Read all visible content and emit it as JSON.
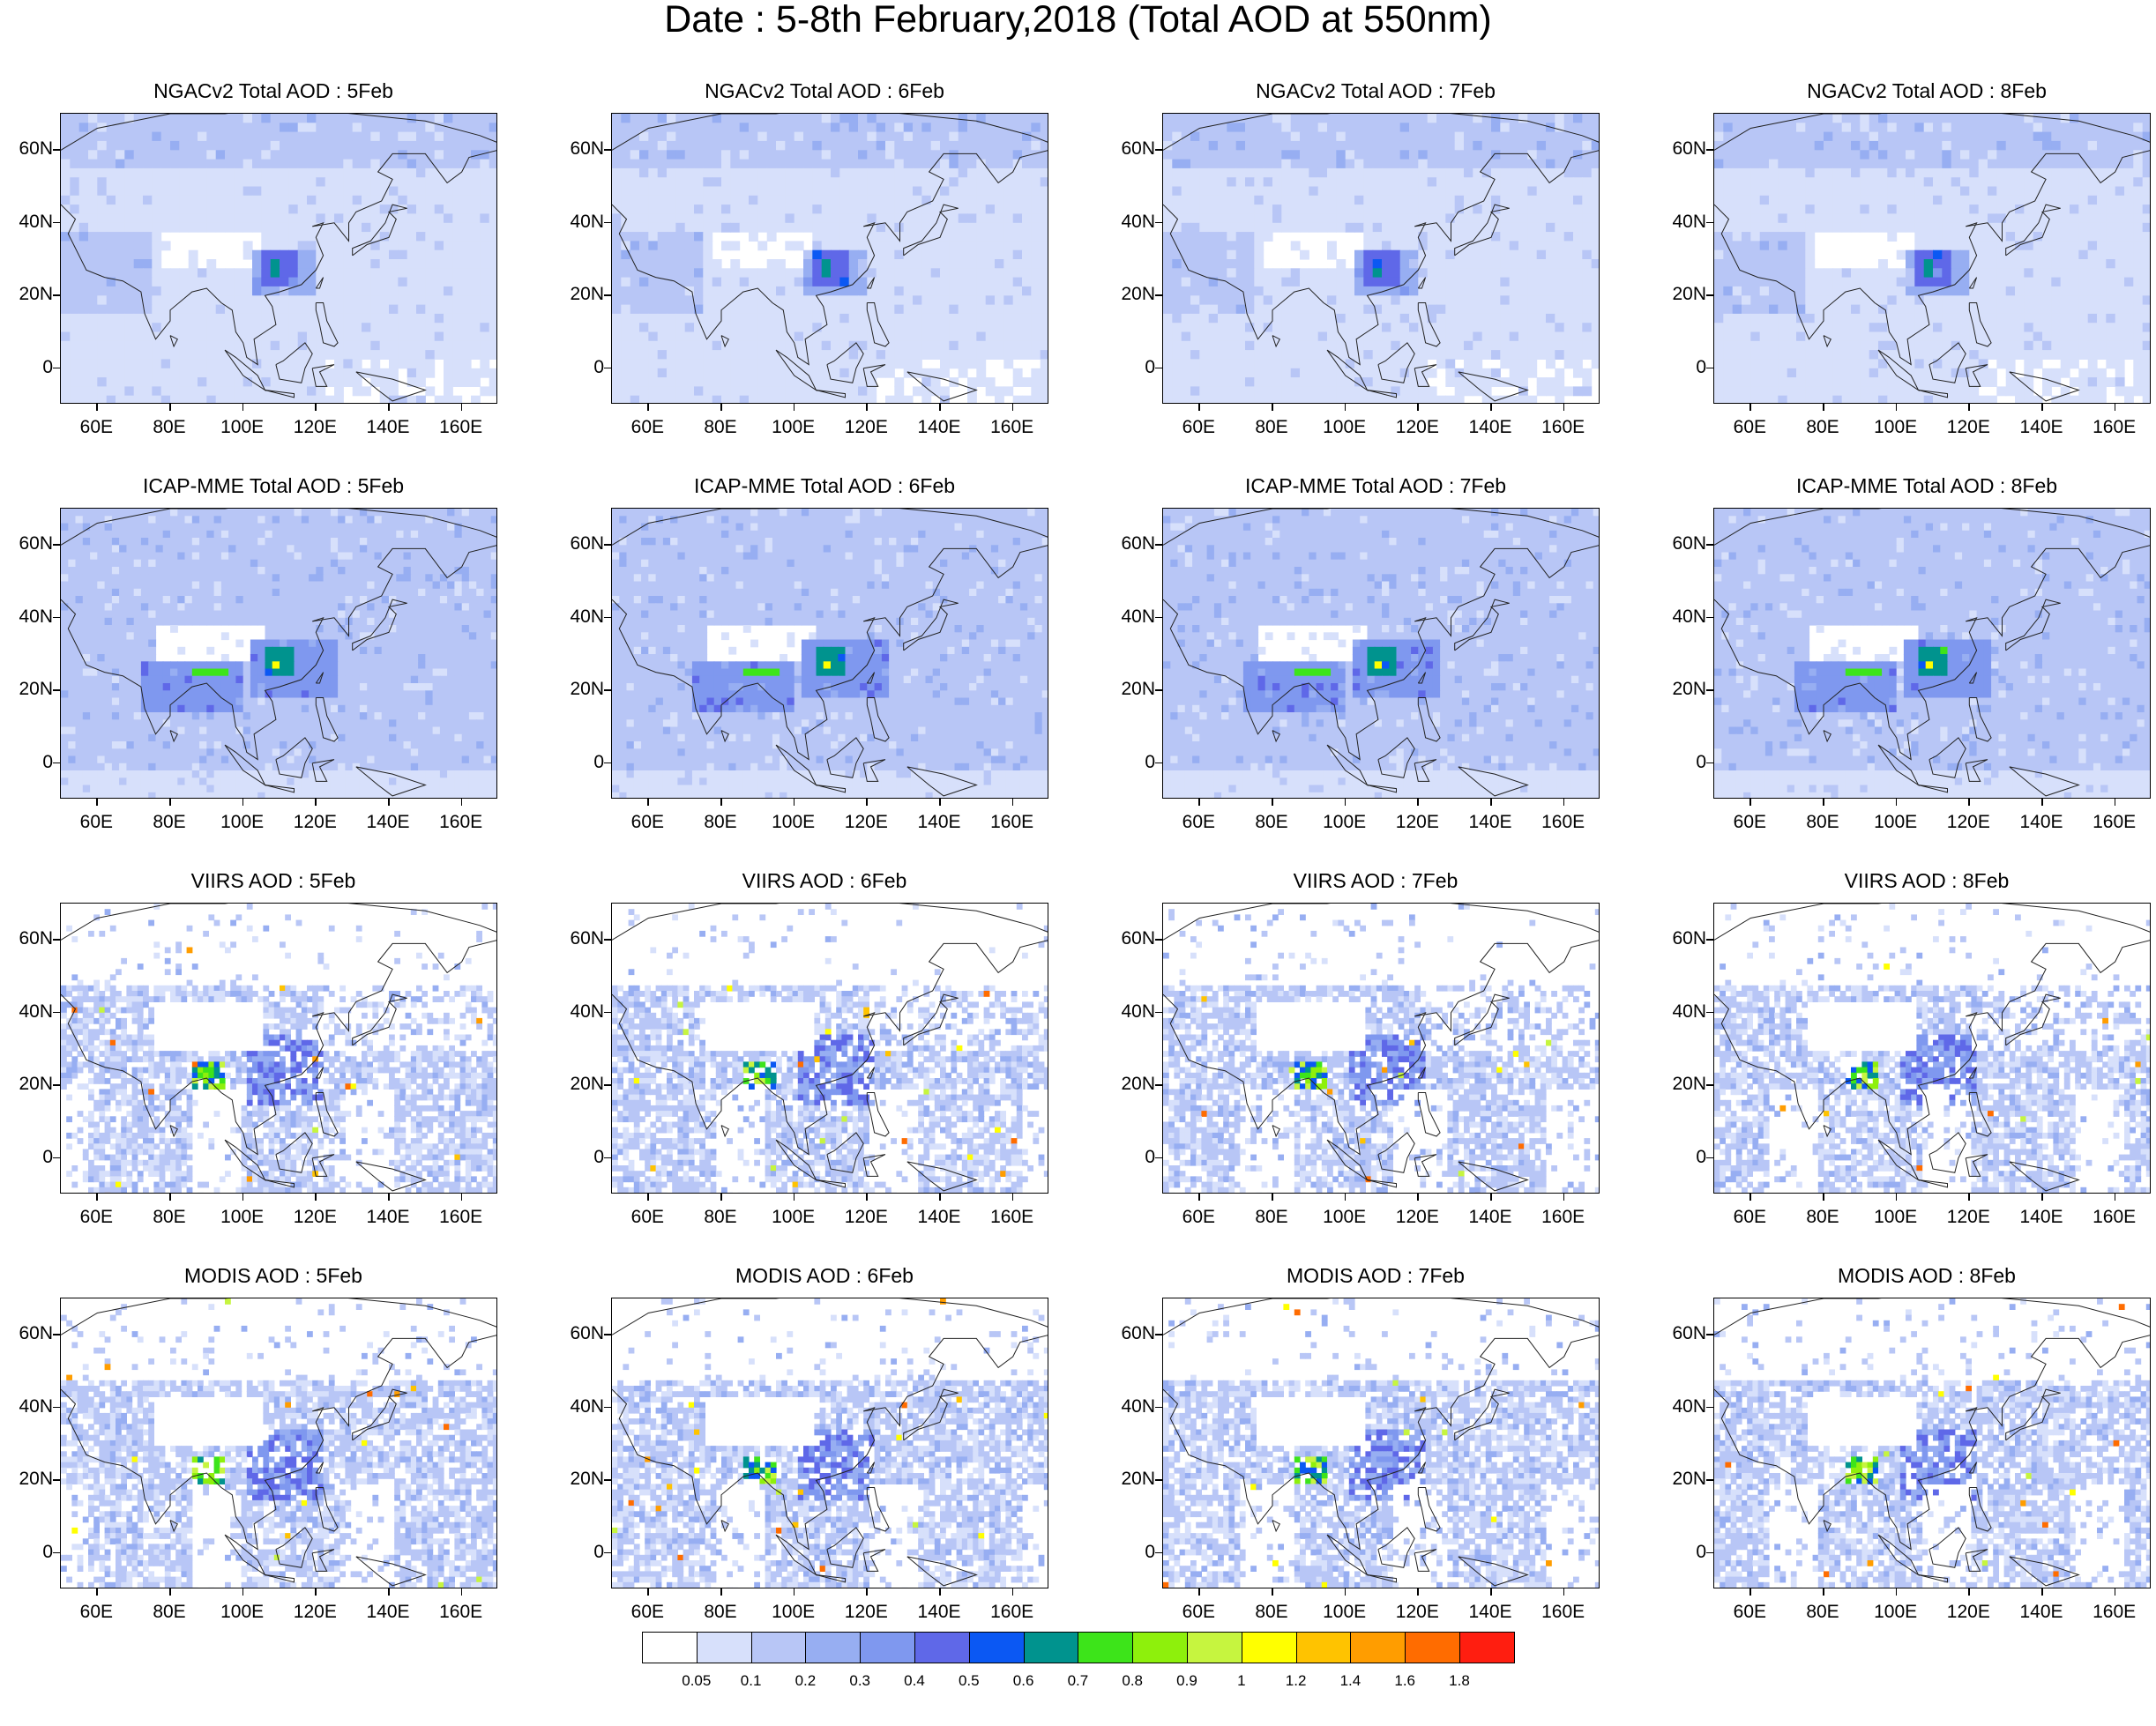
{
  "title": "Date : 5-8th February,2018 (Total AOD at 550nm)",
  "lat_labels": [
    "60N",
    "40N",
    "20N",
    "0"
  ],
  "lon_labels": [
    "60E",
    "80E",
    "100E",
    "120E",
    "140E",
    "160E"
  ],
  "panels": [
    {
      "title": "NGACv2 Total AOD : 5Feb",
      "product": "ngac",
      "day": 5
    },
    {
      "title": "NGACv2 Total AOD : 6Feb",
      "product": "ngac",
      "day": 6
    },
    {
      "title": "NGACv2 Total AOD : 7Feb",
      "product": "ngac",
      "day": 7
    },
    {
      "title": "NGACv2 Total AOD : 8Feb",
      "product": "ngac",
      "day": 8
    },
    {
      "title": "ICAP-MME Total AOD : 5Feb",
      "product": "icap",
      "day": 5
    },
    {
      "title": "ICAP-MME Total AOD : 6Feb",
      "product": "icap",
      "day": 6
    },
    {
      "title": "ICAP-MME Total AOD : 7Feb",
      "product": "icap",
      "day": 7
    },
    {
      "title": "ICAP-MME Total AOD : 8Feb",
      "product": "icap",
      "day": 8
    },
    {
      "title": "VIIRS AOD : 5Feb",
      "product": "viirs",
      "day": 5
    },
    {
      "title": "VIIRS AOD : 6Feb",
      "product": "viirs",
      "day": 6
    },
    {
      "title": "VIIRS AOD : 7Feb",
      "product": "viirs",
      "day": 7
    },
    {
      "title": "VIIRS AOD : 8Feb",
      "product": "viirs",
      "day": 8
    },
    {
      "title": "MODIS AOD : 5Feb",
      "product": "modis",
      "day": 5
    },
    {
      "title": "MODIS AOD : 6Feb",
      "product": "modis",
      "day": 6
    },
    {
      "title": "MODIS AOD : 7Feb",
      "product": "modis",
      "day": 7
    },
    {
      "title": "MODIS AOD : 8Feb",
      "product": "modis",
      "day": 8
    }
  ],
  "colorbar": {
    "labels": [
      "0.05",
      "0.1",
      "0.2",
      "0.3",
      "0.4",
      "0.5",
      "0.6",
      "0.7",
      "0.8",
      "0.9",
      "1",
      "1.2",
      "1.4",
      "1.6",
      "1.8"
    ],
    "colors": [
      "#ffffff",
      "#d7e0fb",
      "#b8c6f6",
      "#97aef2",
      "#7f98ef",
      "#5f68e8",
      "#0b58f3",
      "#00938e",
      "#3de41a",
      "#8ef00c",
      "#c6f53f",
      "#ffff00",
      "#ffc300",
      "#ff9d00",
      "#ff6c00",
      "#ff1e10"
    ]
  },
  "map_extent": {
    "lon": [
      50,
      170
    ],
    "lat": [
      -10,
      70
    ]
  }
}
